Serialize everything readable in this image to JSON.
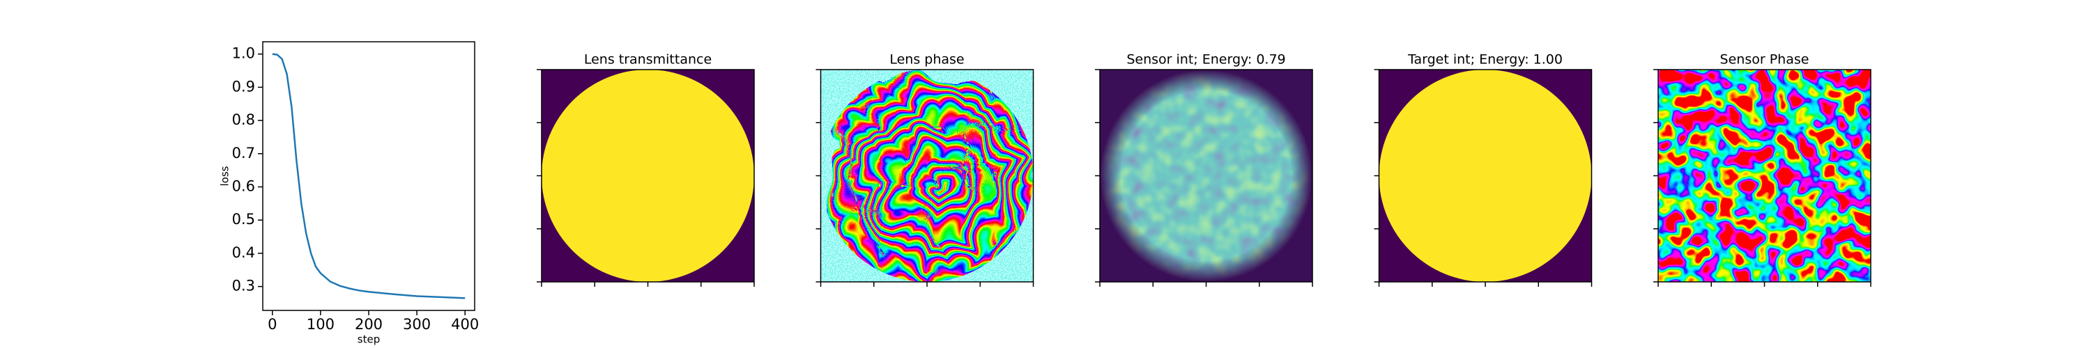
{
  "chart_data": [
    {
      "type": "line",
      "x_label": "step",
      "y_label": "loss",
      "x": [
        0,
        10,
        20,
        30,
        40,
        50,
        60,
        70,
        80,
        90,
        100,
        120,
        140,
        160,
        180,
        200,
        250,
        300,
        350,
        400
      ],
      "values": [
        1.0,
        0.998,
        0.985,
        0.94,
        0.84,
        0.68,
        0.55,
        0.46,
        0.4,
        0.36,
        0.34,
        0.315,
        0.302,
        0.294,
        0.288,
        0.284,
        0.277,
        0.271,
        0.268,
        0.265
      ],
      "color": "#1f77b4",
      "xlim": [
        -20,
        420
      ],
      "xticks": [
        0,
        100,
        200,
        300,
        400
      ],
      "ylim": [
        0.228,
        1.037
      ],
      "yticks": [
        0.3,
        0.4,
        0.5,
        0.6,
        0.7,
        0.8,
        0.9,
        {
          "value": 1,
          "label": "1.0"
        }
      ]
    },
    {
      "type": "image",
      "title": "Lens transmittance"
    },
    {
      "type": "image",
      "title": "Lens phase"
    },
    {
      "type": "image",
      "title": "Sensor int; Energy: 0.79"
    },
    {
      "type": "image",
      "title": "Target int; Energy: 1.00"
    },
    {
      "type": "image",
      "title": "Sensor Phase"
    }
  ]
}
